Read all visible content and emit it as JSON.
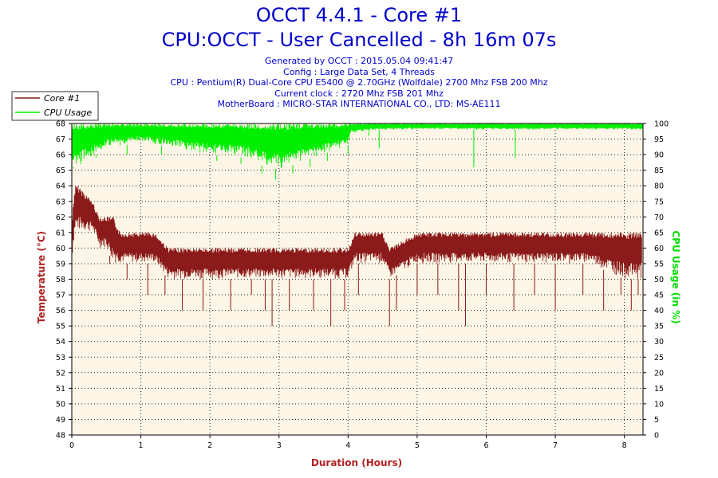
{
  "header": {
    "title": "OCCT 4.4.1 - Core #1",
    "subtitle": "CPU:OCCT - User Cancelled - 8h 16m 07s",
    "info": [
      "Generated by OCCT : 2015.05.04 09:41:47",
      "Config : Large Data Set, 4 Threads",
      "CPU : Pentium(R) Dual-Core CPU E5400 @ 2.70GHz (Wolfdale) 2700 Mhz FSB 200 Mhz",
      "Current clock : 2720 Mhz FSB 201 Mhz",
      "MotherBoard : MICRO-STAR INTERNATIONAL CO., LTD: MS-AE111"
    ]
  },
  "colors": {
    "temperature": "#8b1a1a",
    "cpu_usage": "#00ee00",
    "plot_bg": "#fdf5e6",
    "text_blue": "#0000cc",
    "axis_label": "#b22222"
  },
  "chart_data": {
    "type": "line",
    "title": "OCCT 4.4.1 - Core #1",
    "xlabel": "Duration (Hours)",
    "ylabel_left": "Temperature (°C)",
    "ylabel_right": "CPU Usage (in %)",
    "xlim": [
      0,
      8.27
    ],
    "ylim_left": [
      48,
      68
    ],
    "ylim_right": [
      0,
      100
    ],
    "x_ticks": [
      0,
      1,
      2,
      3,
      4,
      5,
      6,
      7,
      8
    ],
    "y_ticks_left": [
      48,
      49,
      50,
      51,
      52,
      53,
      54,
      55,
      56,
      57,
      58,
      59,
      60,
      61,
      62,
      63,
      64,
      65,
      66,
      67,
      68
    ],
    "y_ticks_right": [
      0,
      5,
      10,
      15,
      20,
      25,
      30,
      35,
      40,
      45,
      50,
      55,
      60,
      65,
      70,
      75,
      80,
      85,
      90,
      95,
      100
    ],
    "grid": true,
    "legend_position": "top-left",
    "series": [
      {
        "name": "Core #1",
        "axis": "left",
        "x": [
          0,
          0.02,
          0.05,
          0.1,
          0.3,
          0.4,
          0.5,
          0.6,
          0.7,
          0.85,
          1.0,
          1.2,
          1.4,
          1.6,
          2.0,
          2.5,
          3.0,
          3.5,
          4.0,
          4.1,
          4.5,
          4.6,
          5.0,
          5.5,
          6.0,
          6.5,
          7.0,
          7.5,
          8.0,
          8.25
        ],
        "low": [
          59,
          60,
          61,
          61,
          61,
          60,
          60,
          59,
          59,
          59,
          59,
          59,
          58,
          58,
          58,
          58,
          58,
          58,
          58,
          59,
          59,
          58,
          59,
          59,
          59,
          59,
          59,
          59,
          58,
          58
        ],
        "high": [
          61,
          63,
          64,
          64,
          63,
          62,
          62,
          62,
          61,
          61,
          61,
          61,
          60,
          60,
          60,
          60,
          60,
          60,
          60,
          61,
          61,
          60,
          61,
          61,
          61,
          61,
          61,
          61,
          61,
          61
        ],
        "dips": [
          [
            0.55,
            59
          ],
          [
            0.8,
            58
          ],
          [
            1.1,
            57
          ],
          [
            1.35,
            57
          ],
          [
            1.6,
            56
          ],
          [
            1.9,
            56
          ],
          [
            2.3,
            56
          ],
          [
            2.6,
            57
          ],
          [
            2.8,
            56
          ],
          [
            2.9,
            55
          ],
          [
            3.15,
            56
          ],
          [
            3.5,
            56
          ],
          [
            3.75,
            55
          ],
          [
            3.95,
            56
          ],
          [
            4.15,
            57
          ],
          [
            4.6,
            55
          ],
          [
            4.7,
            56
          ],
          [
            5.0,
            57
          ],
          [
            5.3,
            57
          ],
          [
            5.6,
            56
          ],
          [
            5.7,
            55
          ],
          [
            6.0,
            57
          ],
          [
            6.4,
            56
          ],
          [
            6.7,
            57
          ],
          [
            7.0,
            56
          ],
          [
            7.4,
            57
          ],
          [
            7.7,
            56
          ],
          [
            7.95,
            57
          ],
          [
            8.1,
            56
          ],
          [
            8.2,
            57
          ]
        ]
      },
      {
        "name": "CPU Usage",
        "axis": "right",
        "x": [
          0,
          0.05,
          0.2,
          0.5,
          1.0,
          1.5,
          2.0,
          2.5,
          2.8,
          3.0,
          3.5,
          4.0,
          4.05,
          4.5,
          5.0,
          6.0,
          7.0,
          8.0,
          8.27
        ],
        "low": [
          86,
          85,
          88,
          92,
          94,
          92,
          90,
          89,
          86,
          85,
          89,
          93,
          97,
          98,
          98,
          98,
          98,
          98,
          98
        ],
        "high": [
          100,
          100,
          100,
          100,
          100,
          100,
          100,
          100,
          100,
          100,
          100,
          100,
          100,
          100,
          100,
          100,
          100,
          100,
          100
        ],
        "dips": [
          [
            0.02,
            86
          ],
          [
            0.35,
            89
          ],
          [
            0.8,
            90
          ],
          [
            1.3,
            90
          ],
          [
            2.1,
            88
          ],
          [
            2.45,
            87
          ],
          [
            2.75,
            84
          ],
          [
            2.95,
            82
          ],
          [
            3.2,
            84
          ],
          [
            3.45,
            86
          ],
          [
            3.7,
            88
          ],
          [
            4.0,
            90
          ],
          [
            4.3,
            96
          ],
          [
            4.45,
            92
          ],
          [
            5.82,
            86
          ],
          [
            6.42,
            89
          ]
        ]
      }
    ]
  }
}
